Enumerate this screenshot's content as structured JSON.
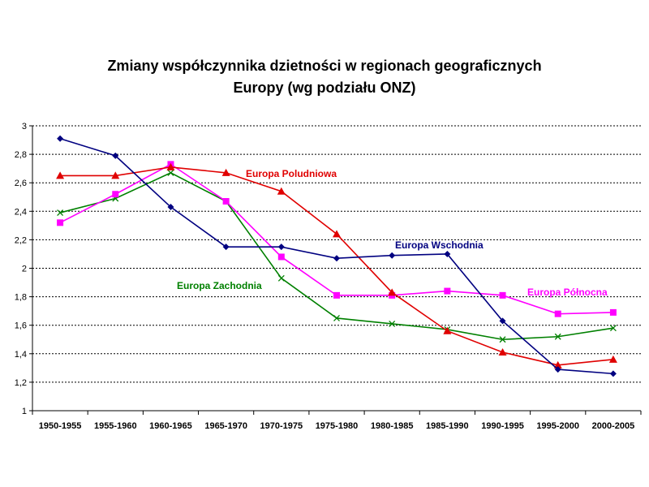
{
  "chart_data": {
    "type": "line",
    "title_lines": [
      "Zmiany współczynnika dzietności w regionach geograficznych",
      "Europy (wg podziału ONZ)"
    ],
    "categories": [
      "1950-1955",
      "1955-1960",
      "1960-1965",
      "1965-1970",
      "1970-1975",
      "1975-1980",
      "1980-1985",
      "1985-1990",
      "1990-1995",
      "1995-2000",
      "2000-2005"
    ],
    "ylim": [
      1,
      3
    ],
    "yticks": [
      1,
      1.2,
      1.4,
      1.6,
      1.8,
      2,
      2.2,
      2.4,
      2.6,
      2.8,
      3
    ],
    "ytick_labels": [
      "1",
      "1,2",
      "1,4",
      "1,6",
      "1,8",
      "2",
      "2,2",
      "2,4",
      "2,6",
      "2,8",
      "3"
    ],
    "grid": true,
    "series": [
      {
        "name": "Europa Wschodnia",
        "color": "#000080",
        "marker": "diamond",
        "values": [
          2.91,
          2.79,
          2.43,
          2.15,
          2.15,
          2.07,
          2.09,
          2.1,
          1.63,
          1.29,
          1.26
        ]
      },
      {
        "name": "Europa Poludniowa",
        "color": "#e00000",
        "marker": "triangle",
        "values": [
          2.65,
          2.65,
          2.71,
          2.67,
          2.54,
          2.24,
          1.83,
          1.56,
          1.41,
          1.32,
          1.36
        ]
      },
      {
        "name": "Europa Zachodnia",
        "color": "#008000",
        "marker": "x",
        "values": [
          2.39,
          2.49,
          2.67,
          2.47,
          1.93,
          1.65,
          1.61,
          1.57,
          1.5,
          1.52,
          1.58
        ]
      },
      {
        "name": "Europa Północna",
        "color": "#ff00ff",
        "marker": "square",
        "values": [
          2.32,
          2.52,
          2.73,
          2.47,
          2.08,
          1.81,
          1.81,
          1.84,
          1.81,
          1.68,
          1.69
        ]
      }
    ]
  }
}
